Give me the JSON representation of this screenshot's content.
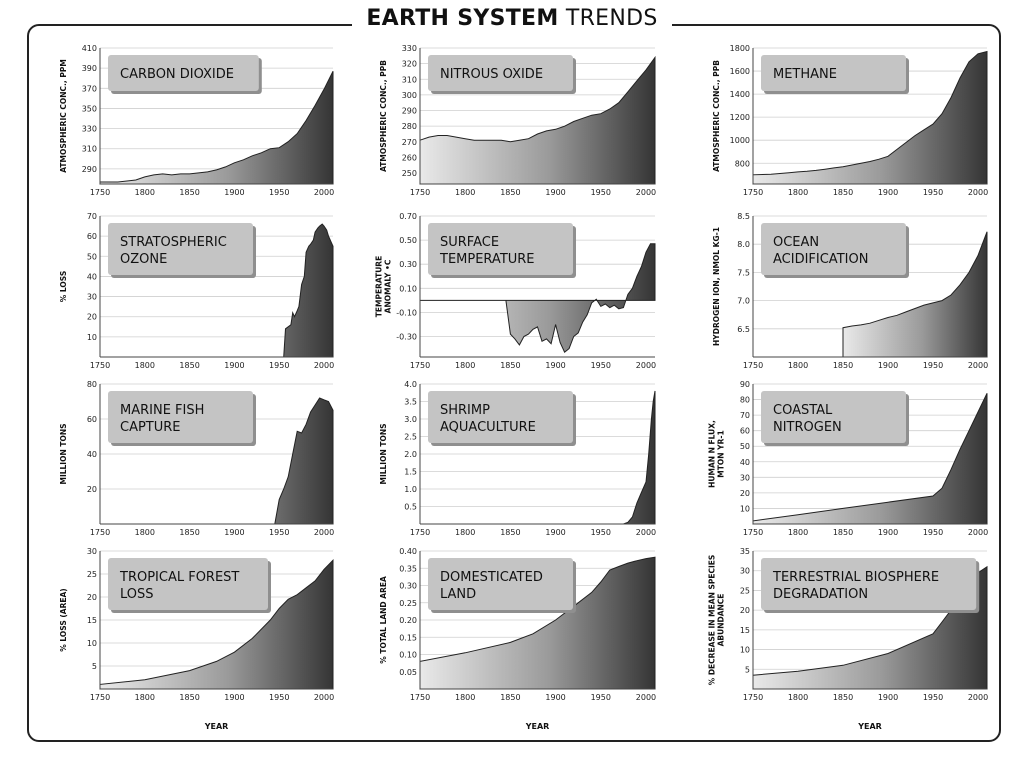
{
  "page": {
    "title_bold": "EARTH SYSTEM",
    "title_light": "TRENDS",
    "x_axis_label": "YEAR"
  },
  "chart_data": [
    {
      "id": "co2",
      "type": "area",
      "title": [
        "CARBON DIOXIDE"
      ],
      "ylabel": [
        "ATMOSPHERIC CONC., PPM"
      ],
      "xlim": [
        1750,
        2010
      ],
      "ylim": [
        275,
        410
      ],
      "yticks": [
        290,
        310,
        330,
        350,
        370,
        390,
        410
      ],
      "xticks": [
        1750,
        1800,
        1850,
        1900,
        1950,
        2000
      ],
      "xlabel": "",
      "x": [
        1750,
        1770,
        1790,
        1800,
        1810,
        1820,
        1830,
        1840,
        1850,
        1860,
        1870,
        1880,
        1890,
        1900,
        1910,
        1920,
        1930,
        1940,
        1950,
        1960,
        1970,
        1980,
        1990,
        2000,
        2010
      ],
      "y": [
        277,
        277,
        279,
        282,
        284,
        285,
        284,
        285,
        285,
        286,
        287,
        289,
        292,
        296,
        299,
        303,
        306,
        310,
        311,
        317,
        325,
        338,
        353,
        369,
        387
      ]
    },
    {
      "id": "n2o",
      "type": "area",
      "title": [
        "NITROUS OXIDE"
      ],
      "ylabel": [
        "ATMOSPHERIC CONC., PPB"
      ],
      "xlim": [
        1750,
        2010
      ],
      "ylim": [
        243,
        330
      ],
      "yticks": [
        250,
        260,
        270,
        280,
        290,
        300,
        310,
        320,
        330
      ],
      "xticks": [
        1750,
        1800,
        1850,
        1900,
        1950,
        2000
      ],
      "xlabel": "",
      "x": [
        1750,
        1760,
        1770,
        1780,
        1790,
        1800,
        1810,
        1820,
        1830,
        1840,
        1850,
        1860,
        1870,
        1880,
        1890,
        1900,
        1910,
        1920,
        1930,
        1940,
        1950,
        1960,
        1970,
        1980,
        1990,
        2000,
        2010
      ],
      "y": [
        271,
        273,
        274,
        274,
        273,
        272,
        271,
        271,
        271,
        271,
        270,
        271,
        272,
        275,
        277,
        278,
        280,
        283,
        285,
        287,
        288,
        291,
        295,
        302,
        309,
        316,
        324
      ]
    },
    {
      "id": "ch4",
      "type": "area",
      "title": [
        "METHANE"
      ],
      "ylabel": [
        "ATMOSPHERIC CONC., PPB"
      ],
      "xlim": [
        1750,
        2010
      ],
      "ylim": [
        620,
        1800
      ],
      "yticks": [
        800,
        1000,
        1200,
        1400,
        1600,
        1800
      ],
      "xticks": [
        1750,
        1800,
        1850,
        1900,
        1950,
        2000
      ],
      "xlabel": "",
      "x": [
        1750,
        1770,
        1790,
        1800,
        1810,
        1820,
        1830,
        1840,
        1850,
        1860,
        1870,
        1880,
        1890,
        1900,
        1910,
        1920,
        1930,
        1940,
        1950,
        1960,
        1970,
        1980,
        1990,
        2000,
        2010
      ],
      "y": [
        700,
        705,
        718,
        725,
        730,
        738,
        748,
        760,
        770,
        785,
        800,
        815,
        835,
        860,
        920,
        980,
        1040,
        1090,
        1140,
        1230,
        1370,
        1540,
        1680,
        1750,
        1770
      ]
    },
    {
      "id": "ozone",
      "type": "area",
      "title": [
        "STRATOSPHERIC",
        "OZONE"
      ],
      "ylabel": [
        "% LOSS"
      ],
      "xlim": [
        1750,
        2010
      ],
      "ylim": [
        0,
        70
      ],
      "yticks": [
        10,
        20,
        30,
        40,
        50,
        60,
        70
      ],
      "xticks": [
        1750,
        1800,
        1850,
        1900,
        1950,
        2000
      ],
      "xlabel": "",
      "x": [
        1750,
        1955,
        1957,
        1960,
        1963,
        1965,
        1967,
        1970,
        1972,
        1975,
        1978,
        1980,
        1983,
        1985,
        1988,
        1990,
        1993,
        1995,
        1998,
        2000,
        2003,
        2005,
        2008,
        2010
      ],
      "y": [
        0,
        0,
        14,
        15,
        16,
        22,
        20,
        23,
        25,
        36,
        40,
        52,
        55,
        56,
        58,
        62,
        64,
        65,
        66,
        65,
        63,
        60,
        57,
        55
      ]
    },
    {
      "id": "temp",
      "type": "area",
      "title": [
        "SURFACE",
        "TEMPERATURE"
      ],
      "ylabel": [
        "TEMPERATURE",
        "ANOMALY •C"
      ],
      "xlim": [
        1750,
        2010
      ],
      "ylim": [
        -0.47,
        0.7
      ],
      "baseline": 0,
      "yticks": [
        -0.3,
        -0.1,
        0.1,
        0.3,
        0.5,
        0.7
      ],
      "ytick_labels": [
        "-0.30",
        "-0.10",
        "0.10",
        "0.30",
        "0.50",
        "0.70"
      ],
      "xticks": [
        1750,
        1800,
        1850,
        1900,
        1950,
        2000
      ],
      "xlabel": "",
      "x": [
        1750,
        1845,
        1850,
        1855,
        1860,
        1865,
        1870,
        1875,
        1880,
        1885,
        1890,
        1895,
        1900,
        1905,
        1910,
        1915,
        1920,
        1925,
        1930,
        1935,
        1940,
        1945,
        1950,
        1955,
        1960,
        1965,
        1970,
        1975,
        1980,
        1985,
        1990,
        1995,
        2000,
        2005,
        2010
      ],
      "y": [
        0,
        0,
        -0.28,
        -0.32,
        -0.37,
        -0.3,
        -0.28,
        -0.24,
        -0.22,
        -0.34,
        -0.32,
        -0.36,
        -0.2,
        -0.35,
        -0.43,
        -0.4,
        -0.3,
        -0.27,
        -0.18,
        -0.12,
        -0.02,
        0.01,
        -0.05,
        -0.03,
        -0.06,
        -0.04,
        -0.07,
        -0.06,
        0.05,
        0.1,
        0.2,
        0.28,
        0.4,
        0.47,
        0.47
      ]
    },
    {
      "id": "ocean",
      "type": "area",
      "title": [
        "OCEAN",
        "ACIDIFICATION"
      ],
      "ylabel": [
        "HYDROGEN ION, NMOL KG-1"
      ],
      "xlim": [
        1750,
        2010
      ],
      "ylim": [
        6.0,
        8.5
      ],
      "yticks": [
        6.5,
        7.0,
        7.5,
        8.0,
        8.5
      ],
      "ytick_labels": [
        "6.5",
        "7.0",
        "7.5",
        "8.0",
        "8.5"
      ],
      "xticks": [
        1750,
        1800,
        1850,
        1900,
        1950,
        2000
      ],
      "xlabel": "",
      "x": [
        1850,
        1860,
        1870,
        1880,
        1890,
        1900,
        1910,
        1920,
        1930,
        1940,
        1950,
        1960,
        1970,
        1980,
        1990,
        2000,
        2010
      ],
      "y": [
        6.52,
        6.55,
        6.57,
        6.6,
        6.65,
        6.7,
        6.74,
        6.8,
        6.86,
        6.92,
        6.96,
        7.0,
        7.1,
        7.28,
        7.5,
        7.8,
        8.22
      ]
    },
    {
      "id": "fish",
      "type": "area",
      "title": [
        "MARINE FISH",
        "CAPTURE"
      ],
      "ylabel": [
        "MILLION TONS"
      ],
      "xlim": [
        1750,
        2010
      ],
      "ylim": [
        0,
        80
      ],
      "yticks": [
        20,
        40,
        60,
        80
      ],
      "xticks": [
        1750,
        1800,
        1850,
        1900,
        1950,
        2000
      ],
      "xlabel": "",
      "x": [
        1750,
        1945,
        1950,
        1955,
        1960,
        1965,
        1970,
        1975,
        1980,
        1985,
        1990,
        1995,
        2000,
        2005,
        2010
      ],
      "y": [
        0,
        0,
        14,
        20,
        27,
        40,
        53,
        52,
        57,
        64,
        68,
        72,
        71,
        70,
        65
      ]
    },
    {
      "id": "shrimp",
      "type": "area",
      "title": [
        "SHRIMP",
        "AQUACULTURE"
      ],
      "ylabel": [
        "MILLION TONS"
      ],
      "xlim": [
        1750,
        2010
      ],
      "ylim": [
        0,
        4.0
      ],
      "yticks": [
        0.5,
        1.0,
        1.5,
        2.0,
        2.5,
        3.0,
        3.5,
        4.0
      ],
      "ytick_labels": [
        "0.5",
        "1.0",
        "1.5",
        "2.0",
        "2.5",
        "3.0",
        "3.5",
        "4.0"
      ],
      "xticks": [
        1750,
        1800,
        1850,
        1900,
        1950,
        2000
      ],
      "xlabel": "",
      "x": [
        1750,
        1975,
        1980,
        1985,
        1990,
        1995,
        2000,
        2003,
        2006,
        2008,
        2010
      ],
      "y": [
        0,
        0,
        0.05,
        0.2,
        0.6,
        0.9,
        1.2,
        2.0,
        3.0,
        3.5,
        3.8
      ]
    },
    {
      "id": "nitrogen",
      "type": "area",
      "title": [
        "COASTAL",
        "NITROGEN"
      ],
      "ylabel": [
        "HUMAN N FLUX,",
        "MTON YR-1"
      ],
      "xlim": [
        1750,
        2010
      ],
      "ylim": [
        0,
        90
      ],
      "yticks": [
        10,
        20,
        30,
        40,
        50,
        60,
        70,
        80,
        90
      ],
      "xticks": [
        1750,
        1800,
        1850,
        1900,
        1950,
        2000
      ],
      "xlabel": "",
      "x": [
        1750,
        1800,
        1850,
        1900,
        1950,
        1960,
        1970,
        1980,
        1990,
        2000,
        2010
      ],
      "y": [
        2,
        6,
        10,
        14,
        18,
        23,
        35,
        48,
        60,
        72,
        84
      ]
    },
    {
      "id": "forest",
      "type": "area",
      "title": [
        "TROPICAL FOREST",
        "LOSS"
      ],
      "ylabel": [
        "% LOSS (AREA)"
      ],
      "xlim": [
        1750,
        2010
      ],
      "ylim": [
        0,
        30
      ],
      "yticks": [
        5,
        10,
        15,
        20,
        25,
        30
      ],
      "xticks": [
        1750,
        1800,
        1850,
        1900,
        1950,
        2000
      ],
      "xlabel": "YEAR",
      "x": [
        1750,
        1800,
        1850,
        1880,
        1900,
        1920,
        1940,
        1950,
        1960,
        1970,
        1980,
        1990,
        2000,
        2010
      ],
      "y": [
        1,
        2,
        4,
        6,
        8,
        11,
        15,
        17.5,
        19.5,
        20.5,
        22,
        23.5,
        26,
        28
      ]
    },
    {
      "id": "land",
      "type": "area",
      "title": [
        "DOMESTICATED",
        "LAND"
      ],
      "ylabel": [
        "% TOTAL LAND AREA"
      ],
      "xlim": [
        1750,
        2010
      ],
      "ylim": [
        0,
        0.4
      ],
      "yticks": [
        0.05,
        0.1,
        0.15,
        0.2,
        0.25,
        0.3,
        0.35,
        0.4
      ],
      "ytick_labels": [
        "0.05",
        "0.10",
        "0.15",
        "0.20",
        "0.25",
        "0.30",
        "0.35",
        "0.40"
      ],
      "xticks": [
        1750,
        1800,
        1850,
        1900,
        1950,
        2000
      ],
      "xlabel": "YEAR",
      "x": [
        1750,
        1800,
        1850,
        1875,
        1900,
        1925,
        1940,
        1950,
        1960,
        1970,
        1980,
        1990,
        2000,
        2010
      ],
      "y": [
        0.08,
        0.105,
        0.135,
        0.16,
        0.2,
        0.25,
        0.28,
        0.31,
        0.345,
        0.355,
        0.365,
        0.372,
        0.378,
        0.382
      ]
    },
    {
      "id": "biosphere",
      "type": "area",
      "title": [
        "TERRESTRIAL BIOSPHERE",
        "DEGRADATION"
      ],
      "ylabel": [
        "% DECREASE IN MEAN SPECIES",
        "ABUNDANCE"
      ],
      "xlim": [
        1750,
        2010
      ],
      "ylim": [
        0,
        35
      ],
      "yticks": [
        5,
        10,
        15,
        20,
        25,
        30,
        35
      ],
      "xticks": [
        1750,
        1800,
        1850,
        1900,
        1950,
        2000
      ],
      "xlabel": "YEAR",
      "x": [
        1750,
        1800,
        1850,
        1900,
        1950,
        1960,
        1970,
        1980,
        1990,
        2000,
        2010
      ],
      "y": [
        3.5,
        4.5,
        6,
        9,
        14,
        17,
        20,
        23.5,
        27,
        29.5,
        31
      ]
    }
  ]
}
